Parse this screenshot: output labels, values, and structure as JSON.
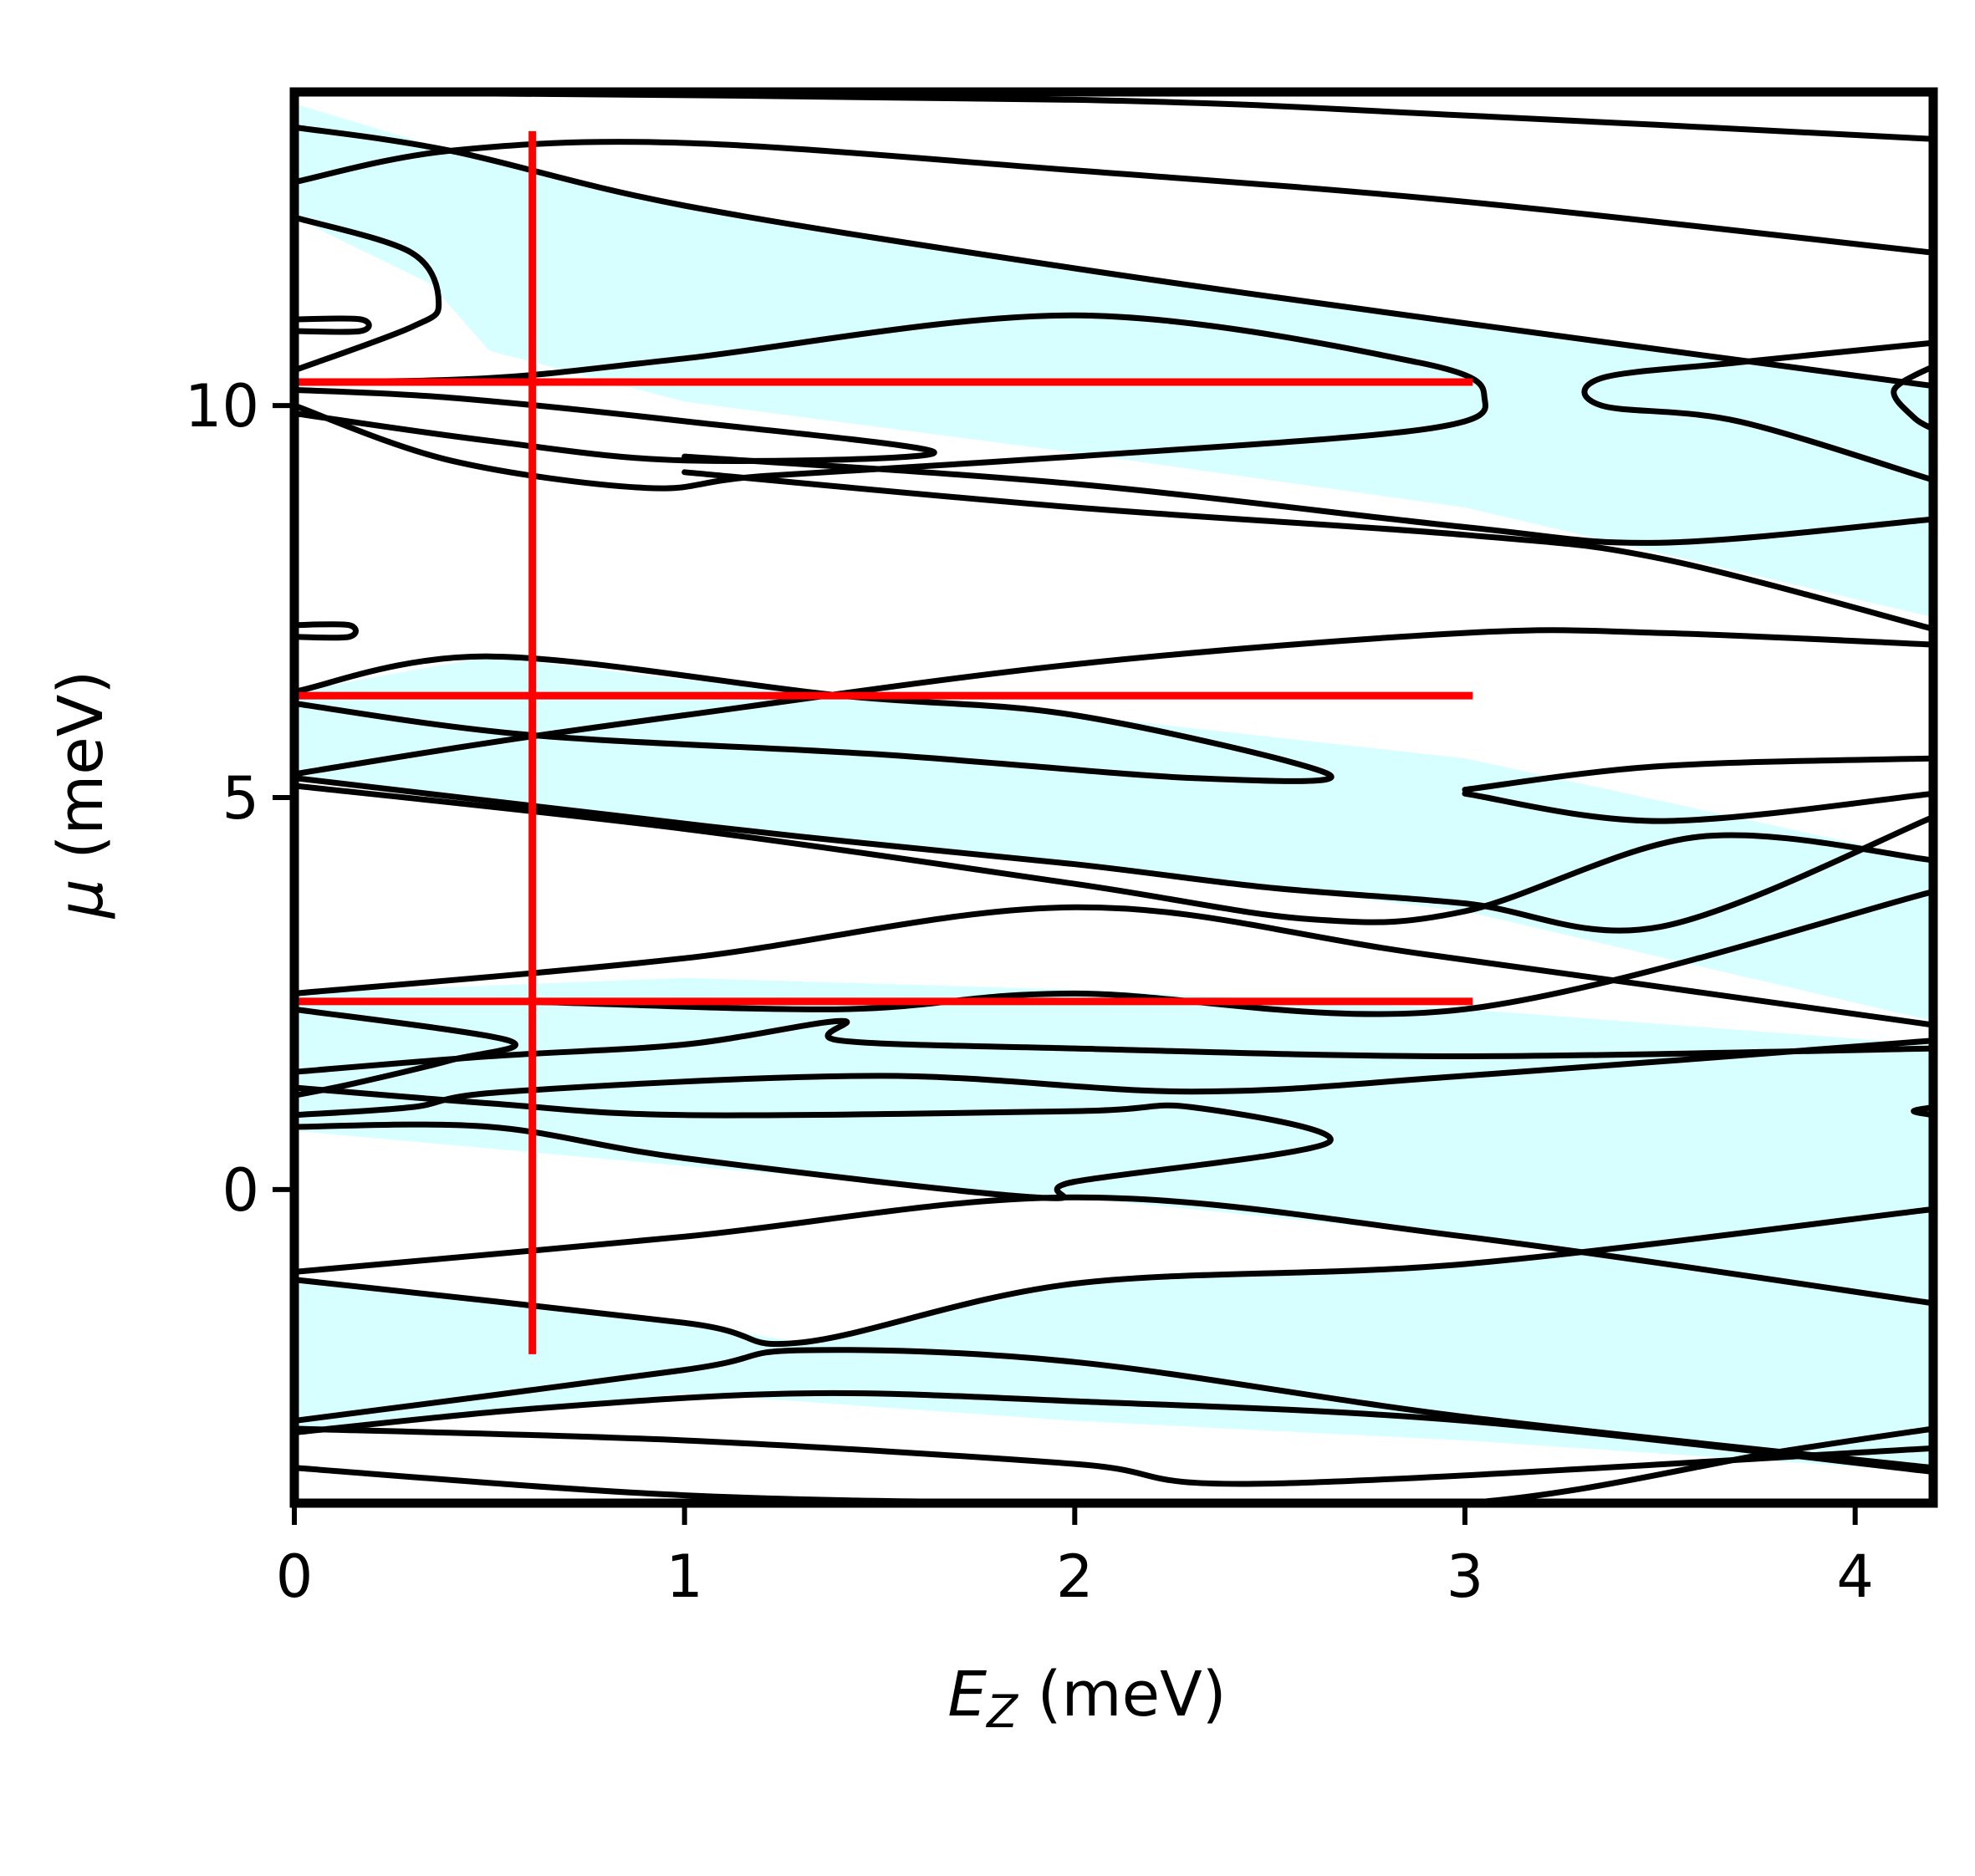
{
  "chart_data": {
    "type": "line",
    "title": "",
    "xlabel": {
      "symbol": "E",
      "subscript": "Z",
      "unit": " (meV)"
    },
    "ylabel": {
      "symbol": "μ",
      "unit": " (meV)"
    },
    "xlim": [
      0,
      4.2
    ],
    "ylim": [
      -4,
      14
    ],
    "xticks": [
      0,
      1,
      2,
      3,
      4
    ],
    "xtick_labels": [
      "0",
      "1",
      "2",
      "3",
      "4"
    ],
    "yticks": [
      0,
      5,
      10
    ],
    "ytick_labels": [
      "0",
      "5",
      "10"
    ],
    "grid": false,
    "colors": {
      "region_fill": "#d8ffff",
      "boundary": "#000000",
      "marker_lines": "#ff0000"
    },
    "shaded_bands": [
      {
        "upper": [
          [
            0,
            13.85
          ],
          [
            0.4,
            13.25
          ],
          [
            1,
            12.55
          ],
          [
            2,
            11.75
          ],
          [
            3,
            11.05
          ],
          [
            4.2,
            10.25
          ]
        ],
        "lower": [
          [
            0,
            12.4
          ],
          [
            0.35,
            11.55
          ],
          [
            0.5,
            10.7
          ],
          [
            1,
            10.05
          ],
          [
            2,
            9.4
          ],
          [
            3,
            8.7
          ],
          [
            4.2,
            7.3
          ]
        ]
      },
      {
        "upper": [
          [
            0,
            6.35
          ],
          [
            0.5,
            6.8
          ],
          [
            1,
            6.5
          ],
          [
            2,
            6.05
          ],
          [
            3,
            5.5
          ],
          [
            4.2,
            4.2
          ]
        ],
        "lower": [
          [
            0,
            5.25
          ],
          [
            0.6,
            4.9
          ],
          [
            1.3,
            4.5
          ],
          [
            2,
            4.15
          ],
          [
            3,
            3.55
          ],
          [
            4.2,
            2.15
          ]
        ]
      },
      {
        "upper": [
          [
            0,
            2.5
          ],
          [
            1,
            2.7
          ],
          [
            2,
            2.55
          ],
          [
            3,
            2.3
          ],
          [
            4.2,
            1.85
          ]
        ],
        "lower": [
          [
            0,
            0.75
          ],
          [
            1,
            0.3
          ],
          [
            2,
            -0.1
          ],
          [
            3,
            -0.6
          ],
          [
            4.2,
            -1.45
          ]
        ]
      },
      {
        "upper": [
          [
            0,
            -1.15
          ],
          [
            1,
            -1.7
          ],
          [
            1.3,
            -1.95
          ],
          [
            2,
            -1.2
          ],
          [
            3,
            -0.95
          ],
          [
            4.2,
            -0.25
          ]
        ],
        "lower": [
          [
            0,
            -3.1
          ],
          [
            1,
            -2.6
          ],
          [
            2,
            -2.95
          ],
          [
            3,
            -3.2
          ],
          [
            4.2,
            -3.6
          ]
        ]
      }
    ],
    "boundary_curves": [
      [
        [
          0,
          13.55
        ],
        [
          0.4,
          13.25
        ],
        [
          1,
          12.55
        ],
        [
          2,
          11.75
        ],
        [
          3,
          11.05
        ],
        [
          4.2,
          10.25
        ]
      ],
      [
        [
          0,
          12.85
        ],
        [
          0.4,
          13.25
        ],
        [
          1,
          13.35
        ],
        [
          2,
          13
        ],
        [
          3,
          12.6
        ],
        [
          4.2,
          11.95
        ]
      ],
      [
        [
          0,
          14
        ],
        [
          2,
          13.9
        ],
        [
          3,
          13.7
        ],
        [
          4.2,
          13.4
        ]
      ],
      [
        [
          0,
          12.4
        ],
        [
          0.3,
          11.95
        ],
        [
          0.37,
          11.3
        ],
        [
          0.3,
          11
        ],
        [
          0,
          10.45
        ]
      ],
      [
        [
          0,
          11.1
        ],
        [
          0.17,
          11.1
        ],
        [
          0.17,
          10.95
        ],
        [
          0,
          10.95
        ]
      ],
      [
        [
          0,
          10.2
        ],
        [
          0.4,
          10.1
        ],
        [
          1,
          9.8
        ],
        [
          1.64,
          9.4
        ],
        [
          1,
          9.3
        ],
        [
          0.5,
          9.55
        ],
        [
          0,
          9.9
        ]
      ],
      [
        [
          0,
          10.3
        ],
        [
          0.5,
          10.35
        ],
        [
          1,
          10.6
        ],
        [
          2,
          11.15
        ],
        [
          2.88,
          10.55
        ],
        [
          3.05,
          10.1
        ],
        [
          2.9,
          9.7
        ],
        [
          2,
          9.35
        ],
        [
          1.2,
          9.1
        ],
        [
          0.9,
          8.95
        ],
        [
          0.4,
          9.3
        ],
        [
          0,
          10
        ]
      ],
      [
        [
          4.2,
          10.8
        ],
        [
          3.7,
          10.55
        ],
        [
          3.35,
          10.35
        ],
        [
          3.35,
          10
        ],
        [
          3.7,
          9.8
        ],
        [
          4.2,
          9.05
        ]
      ],
      [
        [
          4.2,
          10.5
        ],
        [
          4.1,
          10.2
        ],
        [
          4.15,
          9.85
        ],
        [
          4.2,
          9.7
        ]
      ],
      [
        [
          1,
          9.35
        ],
        [
          2,
          9
        ],
        [
          3,
          8.45
        ],
        [
          3.5,
          8.25
        ],
        [
          4.2,
          8.55
        ]
      ],
      [
        [
          1,
          9.15
        ],
        [
          2,
          8.7
        ],
        [
          3,
          8.35
        ],
        [
          3.5,
          8.05
        ],
        [
          4.2,
          7.15
        ]
      ],
      [
        [
          0,
          7.2
        ],
        [
          0.14,
          7.2
        ],
        [
          0.14,
          7.05
        ],
        [
          0,
          7.05
        ]
      ],
      [
        [
          0,
          6.35
        ],
        [
          0.5,
          6.8
        ],
        [
          1.4,
          6.3
        ],
        [
          2,
          6.05
        ],
        [
          2.65,
          5.3
        ],
        [
          2.3,
          5.25
        ],
        [
          1.5,
          5.55
        ],
        [
          0.6,
          5.8
        ],
        [
          0,
          6.2
        ]
      ],
      [
        [
          0,
          5.3
        ],
        [
          0.5,
          5.7
        ],
        [
          1,
          6.05
        ],
        [
          2,
          6.7
        ],
        [
          3,
          7.1
        ],
        [
          3.5,
          7.1
        ],
        [
          4.2,
          6.95
        ]
      ],
      [
        [
          0,
          5.25
        ],
        [
          0.6,
          4.9
        ],
        [
          1.3,
          4.5
        ],
        [
          2,
          4.15
        ],
        [
          2.5,
          3.85
        ],
        [
          3,
          3.65
        ],
        [
          3.5,
          3.35
        ],
        [
          4.2,
          4.75
        ]
      ],
      [
        [
          0,
          5.15
        ],
        [
          1,
          4.6
        ],
        [
          2,
          3.9
        ],
        [
          2.6,
          3.45
        ],
        [
          3,
          3.55
        ],
        [
          3.6,
          4.5
        ],
        [
          4.2,
          4.2
        ]
      ],
      [
        [
          3,
          5.1
        ],
        [
          3.5,
          5.4
        ],
        [
          4.2,
          5.5
        ]
      ],
      [
        [
          3,
          5.05
        ],
        [
          3.5,
          4.7
        ],
        [
          4.2,
          5.05
        ]
      ],
      [
        [
          0,
          2.5
        ],
        [
          1,
          2.95
        ],
        [
          2,
          3.6
        ],
        [
          2.9,
          3.0
        ],
        [
          4.2,
          2.1
        ]
      ],
      [
        [
          0,
          2.4
        ],
        [
          0.55,
          2.4
        ],
        [
          1.4,
          2.3
        ],
        [
          2,
          2.5
        ],
        [
          3,
          2.3
        ],
        [
          4.2,
          3.8
        ]
      ],
      [
        [
          0,
          2.3
        ],
        [
          0.55,
          1.9
        ],
        [
          0.4,
          1.65
        ],
        [
          0.15,
          1.35
        ],
        [
          0,
          1.2
        ]
      ],
      [
        [
          0,
          1.5
        ],
        [
          0.5,
          1.7
        ],
        [
          1,
          1.85
        ],
        [
          1.4,
          2.15
        ],
        [
          1.4,
          1.9
        ],
        [
          2,
          1.8
        ],
        [
          3,
          1.7
        ],
        [
          4.2,
          1.8
        ]
      ],
      [
        [
          0,
          1.3
        ],
        [
          0.5,
          1.1
        ],
        [
          1,
          0.95
        ],
        [
          2,
          1.0
        ],
        [
          2.3,
          1.05
        ],
        [
          2.65,
          0.6
        ],
        [
          2,
          0.1
        ],
        [
          1.9,
          -0.1
        ],
        [
          1,
          0.4
        ],
        [
          0.5,
          0.8
        ],
        [
          0,
          0.8
        ]
      ],
      [
        [
          0,
          0.95
        ],
        [
          0.3,
          1.05
        ],
        [
          0.55,
          1.25
        ],
        [
          1.5,
          1.45
        ],
        [
          2.3,
          1.25
        ],
        [
          3,
          1.45
        ],
        [
          4.2,
          1.9
        ]
      ],
      [
        [
          4.2,
          1.05
        ],
        [
          4.15,
          1.0
        ],
        [
          4.2,
          0.95
        ]
      ],
      [
        [
          0,
          -1.05
        ],
        [
          1,
          -0.6
        ],
        [
          2,
          -0.1
        ],
        [
          3,
          -0.6
        ],
        [
          4.2,
          -1.45
        ]
      ],
      [
        [
          0,
          -1.15
        ],
        [
          1,
          -1.7
        ],
        [
          1.3,
          -1.95
        ],
        [
          2,
          -1.2
        ],
        [
          3,
          -0.95
        ],
        [
          4.2,
          -0.25
        ]
      ],
      [
        [
          0,
          -2.95
        ],
        [
          1,
          -2.3
        ],
        [
          1.3,
          -2.05
        ],
        [
          2,
          -2.2
        ],
        [
          3,
          -2.9
        ],
        [
          4.2,
          -3.55
        ]
      ],
      [
        [
          0,
          -3.1
        ],
        [
          0.6,
          -2.8
        ],
        [
          1.3,
          -2.6
        ],
        [
          2,
          -2.7
        ],
        [
          3,
          -2.95
        ],
        [
          4.2,
          -3.6
        ]
      ],
      [
        [
          0,
          -3.05
        ],
        [
          1,
          -3.2
        ],
        [
          2,
          -3.5
        ],
        [
          2.5,
          -3.75
        ],
        [
          4.2,
          -3.3
        ]
      ],
      [
        [
          0,
          -3.55
        ],
        [
          1,
          -3.9
        ],
        [
          2,
          -4
        ],
        [
          3,
          -4
        ],
        [
          3.8,
          -3.35
        ],
        [
          4.2,
          -3.05
        ]
      ]
    ],
    "marker_lines": [
      {
        "orientation": "vertical",
        "x": 0.61,
        "y_range": [
          -2.1,
          13.5
        ]
      },
      {
        "orientation": "horizontal",
        "y": 10.3,
        "x_range": [
          0,
          3.02
        ]
      },
      {
        "orientation": "horizontal",
        "y": 6.3,
        "x_range": [
          0,
          3.02
        ]
      },
      {
        "orientation": "horizontal",
        "y": 2.4,
        "x_range": [
          0,
          3.02
        ]
      }
    ]
  }
}
